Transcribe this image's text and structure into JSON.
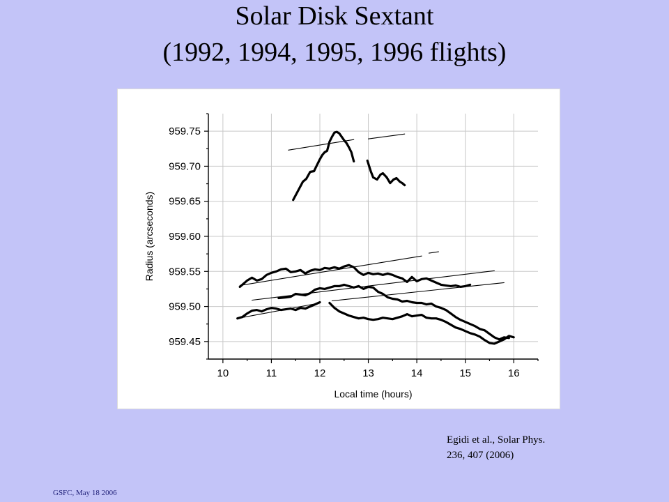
{
  "slide": {
    "title_line1": "Solar Disk Sextant",
    "title_line2": "(1992, 1994, 1995, 1996 flights)",
    "citation_line1": "Egidi et al., Solar Phys.",
    "citation_line2": "236, 407 (2006)",
    "footer": "GSFC,  May 18 2006"
  },
  "chart_data": {
    "type": "line",
    "title": "",
    "xlabel": "Local time (hours)",
    "ylabel": "Radius (arcseconds)",
    "xlim": [
      9.7,
      16.5
    ],
    "ylim": [
      959.425,
      959.775
    ],
    "x_ticks": [
      10,
      11,
      12,
      13,
      14,
      15,
      16
    ],
    "y_ticks": [
      959.45,
      959.5,
      959.55,
      959.6,
      959.65,
      959.7,
      959.75
    ],
    "y_tick_labels": [
      "959.45",
      "959.50",
      "959.55",
      "959.60",
      "959.65",
      "959.70",
      "959.75"
    ],
    "grid": true,
    "legend": "none",
    "series": [
      {
        "style": "thick",
        "points": [
          [
            11.45,
            959.652
          ],
          [
            11.55,
            959.665
          ],
          [
            11.65,
            959.678
          ],
          [
            11.72,
            959.682
          ],
          [
            11.8,
            959.692
          ],
          [
            11.88,
            959.693
          ],
          [
            11.95,
            959.703
          ],
          [
            12.0,
            959.71
          ],
          [
            12.05,
            959.716
          ],
          [
            12.1,
            959.72
          ],
          [
            12.15,
            959.722
          ],
          [
            12.2,
            959.735
          ],
          [
            12.25,
            959.742
          ],
          [
            12.3,
            959.748
          ],
          [
            12.35,
            959.749
          ],
          [
            12.4,
            959.747
          ],
          [
            12.45,
            959.742
          ],
          [
            12.5,
            959.737
          ],
          [
            12.55,
            959.733
          ],
          [
            12.6,
            959.727
          ],
          [
            12.65,
            959.72
          ],
          [
            12.7,
            959.707
          ]
        ]
      },
      {
        "style": "thick",
        "points": [
          [
            12.98,
            959.708
          ],
          [
            13.05,
            959.693
          ],
          [
            13.1,
            959.684
          ],
          [
            13.18,
            959.681
          ],
          [
            13.25,
            959.688
          ],
          [
            13.3,
            959.69
          ],
          [
            13.38,
            959.684
          ],
          [
            13.45,
            959.676
          ],
          [
            13.52,
            959.681
          ],
          [
            13.58,
            959.683
          ],
          [
            13.65,
            959.678
          ],
          [
            13.7,
            959.676
          ],
          [
            13.75,
            959.673
          ]
        ]
      },
      {
        "style": "thick",
        "points": [
          [
            10.35,
            959.528
          ],
          [
            10.5,
            959.537
          ],
          [
            10.6,
            959.541
          ],
          [
            10.7,
            959.537
          ],
          [
            10.8,
            959.539
          ],
          [
            10.9,
            959.545
          ],
          [
            11.0,
            959.548
          ],
          [
            11.1,
            959.55
          ],
          [
            11.2,
            959.553
          ],
          [
            11.3,
            959.554
          ],
          [
            11.4,
            959.549
          ],
          [
            11.5,
            959.55
          ],
          [
            11.6,
            959.552
          ],
          [
            11.7,
            959.547
          ],
          [
            11.8,
            959.551
          ],
          [
            11.9,
            959.553
          ],
          [
            12.0,
            959.552
          ],
          [
            12.1,
            959.555
          ],
          [
            12.2,
            959.554
          ],
          [
            12.3,
            959.556
          ],
          [
            12.4,
            959.554
          ],
          [
            12.5,
            959.557
          ],
          [
            12.6,
            959.559
          ],
          [
            12.7,
            959.556
          ],
          [
            12.8,
            959.549
          ],
          [
            12.9,
            959.545
          ],
          [
            13.0,
            959.548
          ],
          [
            13.1,
            959.546
          ],
          [
            13.2,
            959.547
          ],
          [
            13.3,
            959.545
          ],
          [
            13.4,
            959.547
          ],
          [
            13.5,
            959.545
          ],
          [
            13.6,
            959.542
          ],
          [
            13.7,
            959.54
          ],
          [
            13.8,
            959.535
          ],
          [
            13.9,
            959.542
          ],
          [
            14.0,
            959.536
          ],
          [
            14.1,
            959.539
          ],
          [
            14.2,
            959.54
          ],
          [
            14.3,
            959.537
          ],
          [
            14.4,
            959.534
          ],
          [
            14.5,
            959.531
          ],
          [
            14.6,
            959.53
          ],
          [
            14.7,
            959.529
          ],
          [
            14.8,
            959.53
          ],
          [
            14.9,
            959.528
          ],
          [
            15.0,
            959.529
          ],
          [
            15.1,
            959.531
          ]
        ]
      },
      {
        "style": "thick",
        "points": [
          [
            11.15,
            959.512
          ],
          [
            11.3,
            959.513
          ],
          [
            11.4,
            959.514
          ],
          [
            11.5,
            959.518
          ],
          [
            11.6,
            959.517
          ],
          [
            11.7,
            959.516
          ],
          [
            11.8,
            959.519
          ],
          [
            11.9,
            959.524
          ],
          [
            12.0,
            959.526
          ],
          [
            12.1,
            959.525
          ],
          [
            12.2,
            959.527
          ],
          [
            12.3,
            959.529
          ],
          [
            12.4,
            959.529
          ],
          [
            12.5,
            959.531
          ],
          [
            12.6,
            959.529
          ],
          [
            12.7,
            959.527
          ],
          [
            12.8,
            959.529
          ],
          [
            12.9,
            959.525
          ],
          [
            13.0,
            959.528
          ],
          [
            13.1,
            959.527
          ],
          [
            13.2,
            959.521
          ],
          [
            13.3,
            959.518
          ],
          [
            13.4,
            959.513
          ],
          [
            13.5,
            959.511
          ],
          [
            13.6,
            959.51
          ],
          [
            13.7,
            959.507
          ],
          [
            13.8,
            959.508
          ],
          [
            13.9,
            959.506
          ],
          [
            14.0,
            959.505
          ],
          [
            14.1,
            959.505
          ],
          [
            14.2,
            959.503
          ],
          [
            14.3,
            959.504
          ],
          [
            14.4,
            959.5
          ],
          [
            14.5,
            959.498
          ],
          [
            14.6,
            959.495
          ],
          [
            14.7,
            959.49
          ],
          [
            14.8,
            959.485
          ],
          [
            14.9,
            959.481
          ],
          [
            15.0,
            959.478
          ],
          [
            15.1,
            959.475
          ],
          [
            15.2,
            959.472
          ],
          [
            15.3,
            959.468
          ],
          [
            15.4,
            959.466
          ],
          [
            15.5,
            959.461
          ],
          [
            15.6,
            959.456
          ],
          [
            15.7,
            959.453
          ],
          [
            15.8,
            959.456
          ],
          [
            15.9,
            959.455
          ]
        ]
      },
      {
        "style": "thick",
        "points": [
          [
            10.3,
            959.483
          ],
          [
            10.4,
            959.485
          ],
          [
            10.5,
            959.49
          ],
          [
            10.6,
            959.494
          ],
          [
            10.7,
            959.495
          ],
          [
            10.8,
            959.493
          ],
          [
            10.9,
            959.496
          ],
          [
            11.0,
            959.498
          ],
          [
            11.1,
            959.497
          ],
          [
            11.2,
            959.495
          ],
          [
            11.3,
            959.496
          ],
          [
            11.4,
            959.497
          ],
          [
            11.5,
            959.495
          ],
          [
            11.6,
            959.498
          ],
          [
            11.7,
            959.497
          ],
          [
            11.8,
            959.5
          ],
          [
            11.9,
            959.503
          ],
          [
            12.0,
            959.506
          ]
        ]
      },
      {
        "style": "thick",
        "points": [
          [
            12.2,
            959.505
          ],
          [
            12.3,
            959.498
          ],
          [
            12.4,
            959.493
          ],
          [
            12.5,
            959.49
          ],
          [
            12.6,
            959.487
          ],
          [
            12.7,
            959.485
          ],
          [
            12.8,
            959.483
          ],
          [
            12.9,
            959.484
          ],
          [
            13.0,
            959.482
          ],
          [
            13.1,
            959.481
          ],
          [
            13.2,
            959.482
          ],
          [
            13.3,
            959.484
          ],
          [
            13.4,
            959.483
          ],
          [
            13.5,
            959.482
          ],
          [
            13.6,
            959.484
          ],
          [
            13.7,
            959.486
          ],
          [
            13.8,
            959.489
          ],
          [
            13.9,
            959.486
          ],
          [
            14.0,
            959.487
          ],
          [
            14.1,
            959.488
          ],
          [
            14.2,
            959.484
          ],
          [
            14.3,
            959.483
          ],
          [
            14.4,
            959.483
          ],
          [
            14.5,
            959.481
          ],
          [
            14.6,
            959.478
          ],
          [
            14.7,
            959.474
          ],
          [
            14.8,
            959.47
          ],
          [
            14.9,
            959.468
          ],
          [
            15.0,
            959.465
          ],
          [
            15.1,
            959.462
          ],
          [
            15.2,
            959.46
          ],
          [
            15.3,
            959.457
          ],
          [
            15.4,
            959.452
          ],
          [
            15.5,
            959.448
          ],
          [
            15.6,
            959.447
          ],
          [
            15.7,
            959.45
          ],
          [
            15.8,
            959.453
          ],
          [
            15.9,
            959.458
          ],
          [
            16.0,
            959.456
          ]
        ]
      },
      {
        "style": "thin",
        "points": [
          [
            11.35,
            959.723
          ],
          [
            12.7,
            959.738
          ]
        ]
      },
      {
        "style": "thin",
        "points": [
          [
            13.0,
            959.739
          ],
          [
            13.75,
            959.746
          ]
        ]
      },
      {
        "style": "thin",
        "points": [
          [
            10.35,
            959.53
          ],
          [
            14.1,
            959.572
          ]
        ]
      },
      {
        "style": "thin",
        "points": [
          [
            14.25,
            959.576
          ],
          [
            14.45,
            959.578
          ]
        ]
      },
      {
        "style": "thin",
        "points": [
          [
            10.6,
            959.509
          ],
          [
            15.6,
            959.551
          ]
        ]
      },
      {
        "style": "thin",
        "points": [
          [
            12.25,
            959.508
          ],
          [
            15.8,
            959.534
          ]
        ]
      },
      {
        "style": "thin",
        "points": [
          [
            10.3,
            959.483
          ],
          [
            12.0,
            959.505
          ]
        ]
      }
    ]
  }
}
